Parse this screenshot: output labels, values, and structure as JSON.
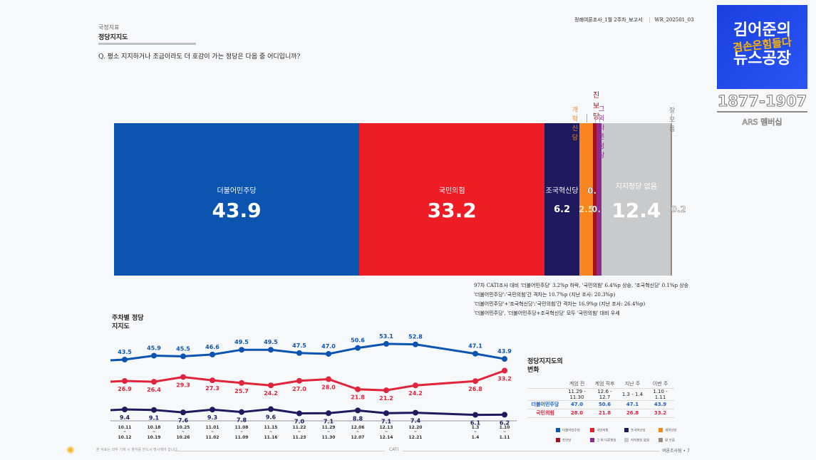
{
  "header": {
    "section": "국정지표",
    "title": "정당지지도",
    "question": "Q. 평소 지지하거나 조금이라도 더 호감이 가는 정당은 다음 중 어디입니까?",
    "report_name": "정례여론조사_1월 2주차_보고서",
    "report_code": "WR_202501_03"
  },
  "logo": {
    "line1": "김어준의",
    "line2": "겸손은힘들다",
    "line3": "뉴스공장",
    "phone": "1877-1907",
    "ars": "ARS 멤버십"
  },
  "chart_data": [
    {
      "type": "bar",
      "stacked": true,
      "orientation": "horizontal",
      "segments": [
        {
          "name": "더불어민주당",
          "value": 43.9,
          "color": "#0b54b0"
        },
        {
          "name": "국민의힘",
          "value": 33.2,
          "color": "#ee1c25"
        },
        {
          "name": "조국혁신당",
          "value": 6.2,
          "color": "#1f1a5e"
        },
        {
          "name": "개혁신당",
          "value": 2.5,
          "color": "#f7861e"
        },
        {
          "name": "진보당",
          "value": 0.6,
          "color": "#a3121c"
        },
        {
          "name": "그 외 다른정당",
          "value": 0.9,
          "color": "#8e2a8f"
        },
        {
          "name": "지지정당 없음",
          "value": 12.4,
          "color": "#c9cacc"
        },
        {
          "name": "잘 모름",
          "value": 0.2,
          "color": "#9a8a7e"
        }
      ]
    },
    {
      "type": "line",
      "title": "주차별 정당지지도",
      "categories": [
        "10.11~10.12",
        "10.18~10.19",
        "10.25~10.26",
        "11.01~11.02",
        "11.08~11.09",
        "11.15~11.16",
        "11.22~11.23",
        "11.29~11.30",
        "12.06~12.07",
        "12.13~12.14",
        "12.20~12.21",
        "1.3~1.4",
        "1.10~1.11"
      ],
      "series": [
        {
          "name": "더불어민주당",
          "color": "#0b54b0",
          "values": [
            43.5,
            45.9,
            45.5,
            46.6,
            49.5,
            49.5,
            47.5,
            47.0,
            50.6,
            53.1,
            52.8,
            47.1,
            43.9
          ]
        },
        {
          "name": "국민의힘",
          "color": "#e0243c",
          "values": [
            26.9,
            26.4,
            29.3,
            27.3,
            25.7,
            24.2,
            27.0,
            28.0,
            21.8,
            21.2,
            24.2,
            26.8,
            33.2
          ]
        },
        {
          "name": "조국혁신당",
          "color": "#1f1a5e",
          "values": [
            9.4,
            9.1,
            7.6,
            9.3,
            7.8,
            9.6,
            7.0,
            7.1,
            8.8,
            7.1,
            7.4,
            6.1,
            6.2
          ]
        }
      ]
    }
  ],
  "notes": [
    "97차 CATI조사 대비 '더불어민주당' 3.2%p 하락, '국민의힘' 6.4%p 상승, '조국혁신당' 0.1%p 상승",
    "'더불어민주당':'국민의힘'간 격차는 10.7%p (지난 조사: 20.3%p)",
    "'더불어민주당'+'조국혁신당':'국민의힘'간 격차는 16.9%p (지난 조사: 26.4%p)",
    "'더불어민주당', '더불어민주당+조국혁신당' 모두 '국민의힘' 대비 우세"
  ],
  "change_table": {
    "title1": "정당지지도의",
    "title2": "변화",
    "headers": [
      "계엄 전",
      "계엄 직후",
      "지난 주",
      "이번 주"
    ],
    "periods": [
      "11.29 - 11.30",
      "12.6 - 12.7",
      "1.3 - 1.4",
      "1.10 - 1.11"
    ],
    "rows": [
      {
        "party": "더불어민주당",
        "values": [
          "47.0",
          "50.6",
          "47.1",
          "43.9"
        ]
      },
      {
        "party": "국민의힘",
        "values": [
          "28.0",
          "21.8",
          "26.8",
          "33.2"
        ]
      }
    ]
  },
  "footer": {
    "note": "본 자료는 외부 기재 시 출처를 반드시 명시해야 합니다.",
    "method": "CATI",
    "page": "여론조사팀  •  7"
  }
}
